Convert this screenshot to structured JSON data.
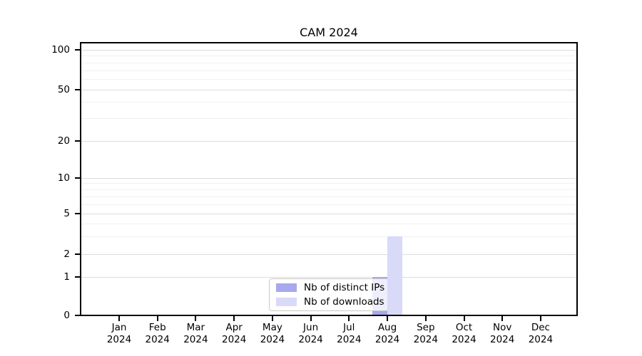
{
  "chart_data": {
    "type": "bar",
    "title": "CAM 2024",
    "categories": [
      "Jan 2024",
      "Feb 2024",
      "Mar 2024",
      "Apr 2024",
      "May 2024",
      "Jun 2024",
      "Jul 2024",
      "Aug 2024",
      "Sep 2024",
      "Oct 2024",
      "Nov 2024",
      "Dec 2024"
    ],
    "series": [
      {
        "name": "Nb of distinct IPs",
        "color": "#a8a8ed",
        "values": [
          0,
          0,
          0,
          0,
          0,
          0,
          0,
          1,
          0,
          0,
          0,
          0
        ]
      },
      {
        "name": "Nb of downloads",
        "color": "#d9d9f8",
        "values": [
          0,
          0,
          0,
          0,
          0,
          0,
          0,
          3,
          0,
          0,
          0,
          0
        ]
      }
    ],
    "yticks": [
      0,
      1,
      2,
      5,
      10,
      20,
      50,
      100
    ],
    "ylim": [
      0,
      110
    ],
    "yscale": "log-like (0,1,2,5,10,20,50,100)",
    "minor_gridline_values": [
      3,
      4,
      6,
      7,
      8,
      9,
      30,
      40,
      60,
      70,
      80,
      90
    ],
    "xlabel": "",
    "ylabel": "",
    "grid": "horizontal, major and minor",
    "legend_position": "bottom-center inside plot, behind second series bar"
  },
  "colors": {
    "distinct_ips_bar": "#a8a8ed",
    "downloads_bar": "#d9d9f8",
    "major_gridline": "#dcdcdc",
    "minor_gridline": "#f0f0f0",
    "frame": "#000000",
    "legend_border": "#c9c9c9",
    "background": "#ffffff"
  }
}
